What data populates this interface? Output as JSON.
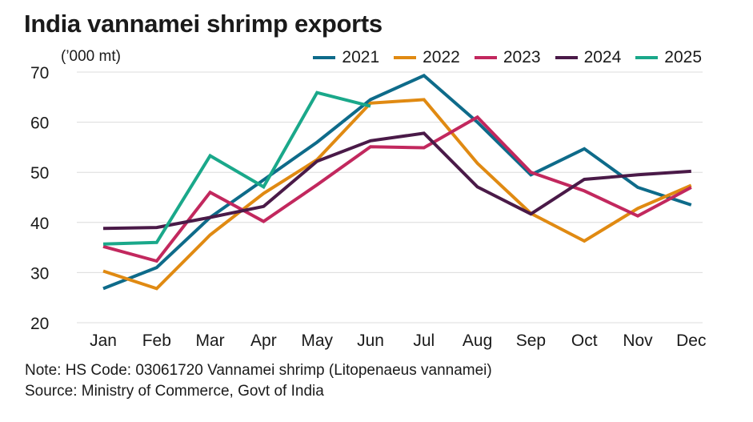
{
  "title": "India vannamei shrimp exports",
  "unit_label": "(’000 mt)",
  "notes": {
    "note": "Note: HS Code: 03061720 Vannamei shrimp (Litopenaeus vannamei)",
    "source": "Source: Ministry of Commerce, Govt of India"
  },
  "chart_data": {
    "type": "line",
    "title": "India vannamei shrimp exports",
    "ylabel": "(’000 mt)",
    "xlabel": "",
    "categories": [
      "Jan",
      "Feb",
      "Mar",
      "Apr",
      "May",
      "Jun",
      "Jul",
      "Aug",
      "Sep",
      "Oct",
      "Nov",
      "Dec"
    ],
    "ylim": [
      20,
      70
    ],
    "yticks": [
      20,
      30,
      40,
      50,
      60,
      70
    ],
    "grid": true,
    "legend_position": "top-right",
    "series": [
      {
        "name": "2021",
        "color": "#0e6b8a",
        "values": [
          26.8,
          31.0,
          41.0,
          48.5,
          56.0,
          64.5,
          69.3,
          60.0,
          49.5,
          54.7,
          47.0,
          43.5
        ]
      },
      {
        "name": "2022",
        "color": "#e08a12",
        "values": [
          30.3,
          26.8,
          37.5,
          45.8,
          52.5,
          63.8,
          64.5,
          51.8,
          41.8,
          36.3,
          42.8,
          47.4
        ]
      },
      {
        "name": "2023",
        "color": "#c2285e",
        "values": [
          35.2,
          32.3,
          46.0,
          40.2,
          47.5,
          55.1,
          54.9,
          61.0,
          50.0,
          46.3,
          41.3,
          47.0
        ]
      },
      {
        "name": "2024",
        "color": "#4a1a48",
        "values": [
          38.8,
          39.0,
          41.0,
          43.2,
          52.2,
          56.3,
          57.8,
          47.1,
          41.7,
          48.6,
          49.5,
          50.2
        ]
      },
      {
        "name": "2025",
        "color": "#1aa88a",
        "values": [
          35.7,
          36.0,
          53.3,
          47.1,
          65.9,
          63.2,
          null,
          null,
          null,
          null,
          null,
          null
        ]
      }
    ]
  }
}
